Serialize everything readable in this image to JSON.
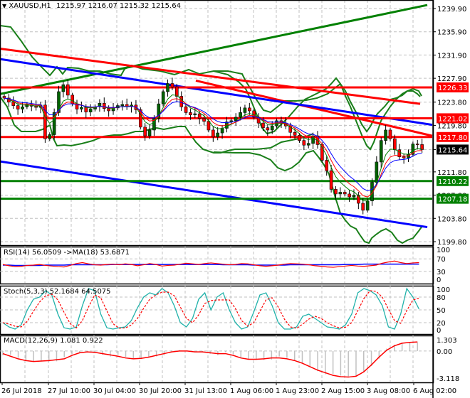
{
  "header": {
    "symbol_arrow": "▼",
    "title": "XAUUSD,H1",
    "ohlc": "1215.97 1216.07 1215.32 1215.64"
  },
  "indicators": {
    "rsi_label": "RSI(14) 56.0509  ->MA(18) 53.6871",
    "stoch_label": "Stoch(5,3,3) 52.1684 64.5075",
    "macd_label": "MACD(12,26,9) 1.081 0.922"
  },
  "colors": {
    "bull_candle": "#006400",
    "bear_candle": "#ff0000",
    "support_line": "#008000",
    "resistance_line": "#ff0000",
    "channel_blue": "#0000ff",
    "bollinger": "#1a7f1a",
    "grid": "#c0c0c0",
    "stoch_main": "#20b2aa",
    "stoch_signal": "#ff0000",
    "macd_hist": "#c0c0c0",
    "macd_signal": "#ff0000",
    "current_price_bg": "#000000"
  },
  "price_axis": {
    "ticks": [
      "1239.90",
      "1235.90",
      "1231.90",
      "1227.90",
      "1223.80",
      "1219.80",
      "1215.64",
      "1211.80",
      "1207.80",
      "1203.80",
      "1199.80"
    ],
    "tags": [
      {
        "value": "1226.33",
        "color": "#ff0000"
      },
      {
        "value": "1221.02",
        "color": "#ff0000"
      },
      {
        "value": "1217.80",
        "color": "#ff0000"
      },
      {
        "value": "1215.64",
        "color": "#000000"
      },
      {
        "value": "1210.22",
        "color": "#008000"
      },
      {
        "value": "1207.18",
        "color": "#008000"
      }
    ]
  },
  "rsi_axis": [
    "100",
    "70",
    "30",
    "0"
  ],
  "stoch_axis": [
    "100",
    "80",
    "50",
    "20",
    "0"
  ],
  "macd_axis": [
    "1.303",
    "0.00",
    "-3.118"
  ],
  "time_axis": [
    "26 Jul 2018",
    "27 Jul 10:00",
    "30 Jul 04:00",
    "30 Jul 20:00",
    "31 Jul 13:00",
    "1 Aug 06:00",
    "1 Aug 23:00",
    "2 Aug 15:00",
    "3 Aug 08:00",
    "6 Aug 02:00"
  ],
  "chart_data": {
    "type": "candlestick",
    "title": "XAUUSD,H1",
    "symbol": "XAUUSD",
    "timeframe": "H1",
    "last_ohlc": {
      "open": 1215.97,
      "high": 1216.07,
      "low": 1215.32,
      "close": 1215.64
    },
    "ylim": [
      1199.8,
      1241.0
    ],
    "y_ticks": [
      1199.8,
      1203.8,
      1207.8,
      1211.8,
      1215.8,
      1219.8,
      1223.8,
      1227.9,
      1231.9,
      1235.9,
      1239.9
    ],
    "x_ticks": [
      "26 Jul 2018",
      "27 Jul 10:00",
      "30 Jul 04:00",
      "30 Jul 20:00",
      "31 Jul 13:00",
      "1 Aug 06:00",
      "1 Aug 23:00",
      "2 Aug 15:00",
      "3 Aug 08:00",
      "6 Aug 02:00"
    ],
    "horizontal_levels": [
      {
        "price": 1226.33,
        "color": "red",
        "role": "resistance"
      },
      {
        "price": 1221.02,
        "color": "red",
        "role": "resistance"
      },
      {
        "price": 1217.8,
        "color": "red",
        "role": "resistance"
      },
      {
        "price": 1210.22,
        "color": "green",
        "role": "support"
      },
      {
        "price": 1207.18,
        "color": "green",
        "role": "support"
      }
    ],
    "current_price": 1215.64,
    "close_series_approx": [
      1224.5,
      1223.8,
      1223.2,
      1222.6,
      1223.0,
      1223.4,
      1223.1,
      1222.9,
      1223.3,
      1217.5,
      1218.2,
      1222.0,
      1225.6,
      1226.8,
      1225.0,
      1223.5,
      1222.6,
      1222.9,
      1222.1,
      1222.6,
      1223.0,
      1223.6,
      1222.7,
      1222.3,
      1222.8,
      1223.2,
      1223.4,
      1223.0,
      1223.3,
      1222.5,
      1219.5,
      1218.0,
      1219.0,
      1221.0,
      1223.5,
      1225.6,
      1227.0,
      1226.4,
      1224.8,
      1223.0,
      1222.0,
      1221.6,
      1221.8,
      1221.0,
      1220.5,
      1219.0,
      1217.8,
      1218.5,
      1219.3,
      1220.4,
      1220.6,
      1221.2,
      1222.0,
      1222.8,
      1222.3,
      1221.2,
      1220.2,
      1219.4,
      1219.0,
      1219.7,
      1220.6,
      1220.2,
      1219.7,
      1218.6,
      1218.1,
      1217.2,
      1216.4,
      1216.7,
      1218.0,
      1216.5,
      1213.8,
      1212.0,
      1208.8,
      1208.0,
      1208.3,
      1208.0,
      1207.5,
      1207.8,
      1206.4,
      1205.2,
      1206.8,
      1210.0,
      1213.5,
      1217.2,
      1219.0,
      1217.5,
      1215.6,
      1214.4,
      1214.2,
      1214.8,
      1216.6,
      1216.5,
      1215.64
    ],
    "overlays": [
      {
        "name": "Rising green trendline",
        "color": "green",
        "from": [
          0,
          1225.2
        ],
        "to": [
          600,
          1240.5
        ]
      },
      {
        "name": "Upper red channel",
        "color": "red",
        "from": [
          0,
          1233.0
        ],
        "to": [
          590,
          1223.5
        ]
      },
      {
        "name": "Descending red trendline",
        "color": "red",
        "from": [
          275,
          1227.5
        ],
        "to": [
          607,
          1218.0
        ]
      },
      {
        "name": "Upper blue channel",
        "color": "blue",
        "from": [
          0,
          1231.2
        ],
        "to": [
          607,
          1219.9
        ]
      },
      {
        "name": "Lower blue channel",
        "color": "blue",
        "from": [
          0,
          1213.6
        ],
        "to": [
          600,
          1202.3
        ]
      },
      {
        "name": "Bollinger Bands (green)",
        "color": "green"
      },
      {
        "name": "Moving averages (blue/red/green thin)",
        "color": "mixed"
      }
    ],
    "rsi": {
      "period": 14,
      "value": 56.0509,
      "ma_period": 18,
      "ma_value": 53.6871,
      "levels": [
        30,
        70
      ],
      "ylim": [
        0,
        100
      ]
    },
    "stochastic": {
      "params": "5,3,3",
      "main": 52.1684,
      "signal": 64.5075,
      "levels": [
        20,
        80
      ],
      "ylim": [
        0,
        100
      ]
    },
    "macd": {
      "params": "12,26,9",
      "main": 1.081,
      "signal": 0.922,
      "ylim": [
        -3.118,
        1.303
      ]
    }
  }
}
